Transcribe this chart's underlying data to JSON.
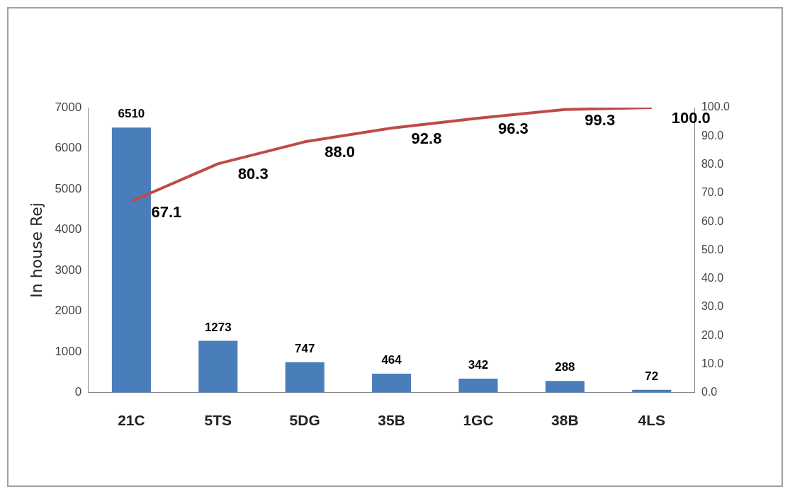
{
  "chart_data": {
    "type": "bar",
    "ylabel": "In house Rej",
    "categories": [
      "21C",
      "5TS",
      "5DG",
      "35B",
      "1GC",
      "38B",
      "4LS"
    ],
    "series": [
      {
        "color": "#4a7ebb",
        "values": [
          6510,
          1273,
          747,
          464,
          342,
          288,
          72
        ],
        "value_labels": [
          "6510",
          "1273",
          "747",
          "464",
          "342",
          "288",
          "72"
        ]
      },
      {
        "type": "line",
        "axis": "y2",
        "color": "#be4b48",
        "marker": "none",
        "values": [
          67.1,
          80.3,
          88.0,
          92.8,
          96.3,
          99.3,
          100.0
        ],
        "value_labels": [
          "67.1",
          "80.3",
          "88.0",
          "92.8",
          "96.3",
          "99.3",
          "100.0"
        ]
      }
    ],
    "ylim": [
      0,
      7000
    ],
    "yticks": [
      0,
      1000,
      2000,
      3000,
      4000,
      5000,
      6000,
      7000
    ],
    "y2lim": [
      0,
      100
    ],
    "y2ticks": [
      {
        "value": 0,
        "label": "0.0"
      },
      {
        "value": 10,
        "label": "10.0"
      },
      {
        "value": 20,
        "label": "20.0"
      },
      {
        "value": 30,
        "label": "30.0"
      },
      {
        "value": 40,
        "label": "40.0"
      },
      {
        "value": 50,
        "label": "50.0"
      },
      {
        "value": 60,
        "label": "60.0"
      },
      {
        "value": 70,
        "label": "70.0"
      },
      {
        "value": 80,
        "label": "80.0"
      },
      {
        "value": 90,
        "label": "90.0"
      },
      {
        "value": 100,
        "label": "100.0"
      }
    ],
    "grid": false,
    "legend": false
  }
}
